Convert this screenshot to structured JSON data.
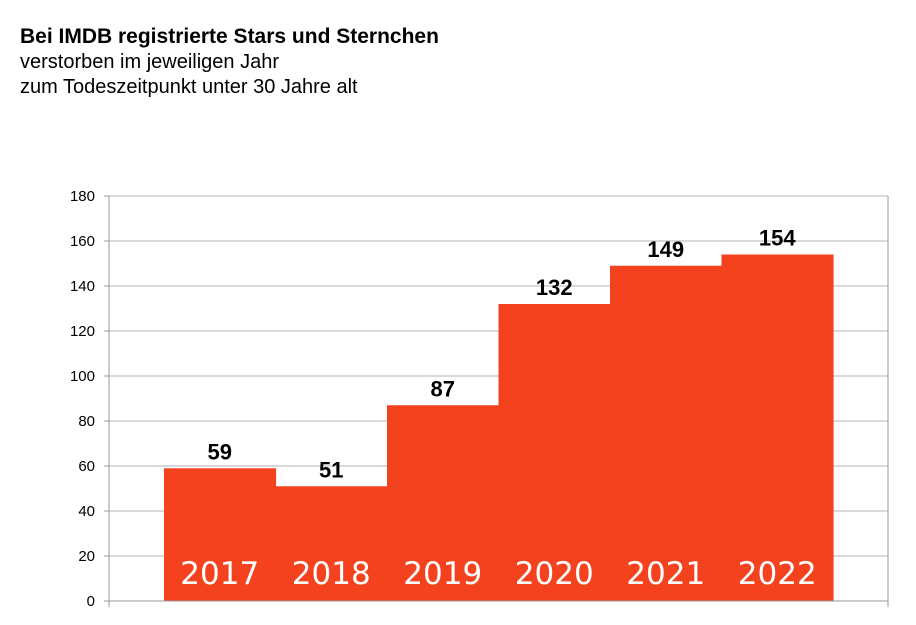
{
  "title": "Bei IMDB registrierte Stars und Sternchen",
  "subtitle_lines": [
    "verstorben im jeweiligen Jahr",
    "zum Todeszeitpunkt unter 30 Jahre alt"
  ],
  "colors": {
    "bar": "#f4421e",
    "grid": "#b3b3b3",
    "axis": "#999999"
  },
  "chart_data": {
    "type": "bar",
    "categories": [
      "2017",
      "2018",
      "2019",
      "2020",
      "2021",
      "2022"
    ],
    "values": [
      59,
      51,
      87,
      132,
      149,
      154
    ],
    "ylim": [
      0,
      180
    ],
    "yticks": [
      0,
      20,
      40,
      60,
      80,
      100,
      120,
      140,
      160,
      180
    ],
    "grid": true,
    "data_labels": true,
    "category_labels_inside_bars": true
  }
}
